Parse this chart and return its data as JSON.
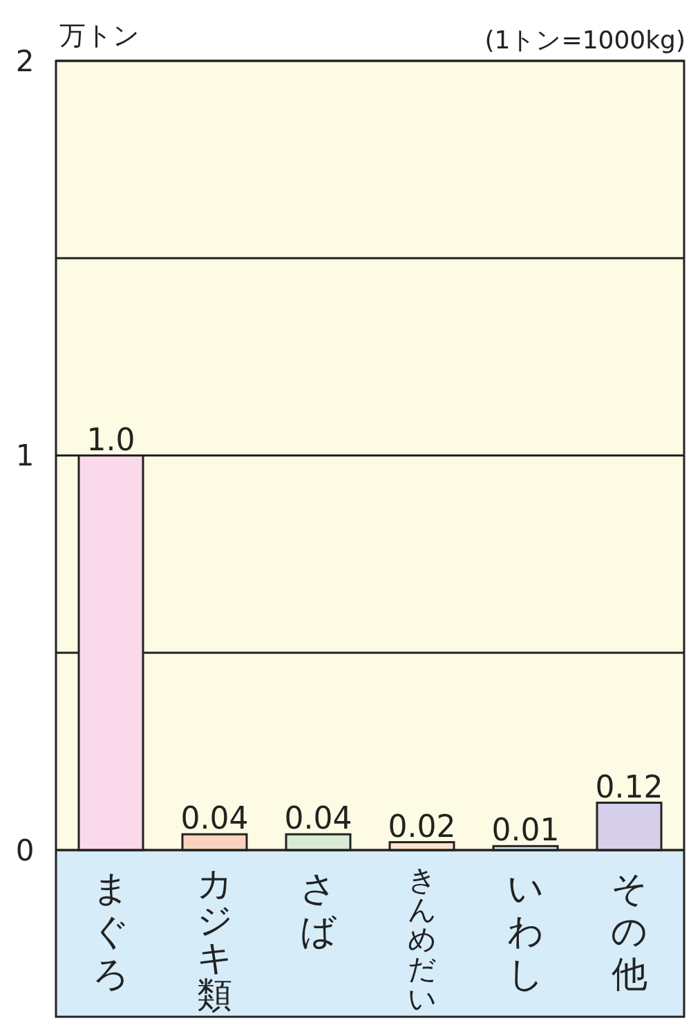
{
  "chart_data": {
    "type": "bar",
    "ylabel": "万トン",
    "annotations": [
      "(1トン=1000kg)"
    ],
    "categories": [
      "まぐろ",
      "カジキ類",
      "さば",
      "きんめだい",
      "いわし",
      "その他"
    ],
    "values": [
      1.0,
      0.04,
      0.04,
      0.02,
      0.01,
      0.12
    ],
    "value_labels": [
      "1.0",
      "0.04",
      "0.04",
      "0.02",
      "0.01",
      "0.12"
    ],
    "colors": [
      "#f9d9ea",
      "#f9d3c0",
      "#d7ebd5",
      "#fde3cc",
      "#d6ecf8",
      "#d6d0ea"
    ],
    "ylim": [
      0,
      2
    ],
    "yticks": [
      0,
      {
        "value": 0.5,
        "label": null
      },
      1,
      {
        "value": 1.5,
        "label": null
      },
      2
    ],
    "grid": "y"
  }
}
